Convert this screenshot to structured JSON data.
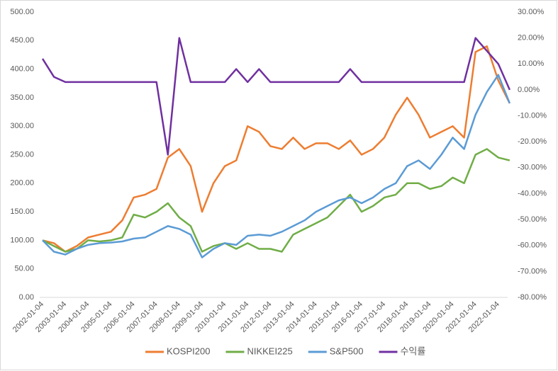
{
  "chart_data": {
    "type": "line",
    "categories": [
      "2002-01-04",
      null,
      "2003-01-04",
      null,
      "2004-01-04",
      null,
      "2005-01-04",
      null,
      "2006-01-04",
      null,
      "2007-01-04",
      null,
      "2008-01-04",
      null,
      "2009-01-04",
      null,
      "2010-01-04",
      null,
      "2011-01-04",
      null,
      "2012-01-04",
      null,
      "2013-01-04",
      null,
      "2014-01-04",
      null,
      "2015-01-04",
      null,
      "2016-01-04",
      null,
      "2017-01-04",
      null,
      "2018-01-04",
      null,
      "2019-01-04",
      null,
      "2020-01-04",
      null,
      "2021-01-04",
      null,
      "2022-01-04",
      null
    ],
    "series": [
      {
        "name": "KOSPI200",
        "color": "#ED7D31",
        "values": [
          100,
          95,
          80,
          90,
          105,
          110,
          115,
          135,
          175,
          180,
          190,
          245,
          260,
          230,
          150,
          200,
          230,
          240,
          300,
          290,
          265,
          260,
          280,
          260,
          270,
          270,
          260,
          275,
          250,
          260,
          280,
          320,
          350,
          320,
          280,
          290,
          300,
          280,
          430,
          440,
          380,
          340
        ]
      },
      {
        "name": "NIKKEI225",
        "color": "#70AD47",
        "values": [
          100,
          90,
          80,
          85,
          100,
          98,
          100,
          105,
          145,
          140,
          150,
          165,
          140,
          125,
          80,
          90,
          95,
          85,
          95,
          85,
          85,
          80,
          110,
          120,
          130,
          140,
          160,
          180,
          150,
          160,
          175,
          180,
          200,
          200,
          190,
          195,
          210,
          200,
          250,
          260,
          245,
          240
        ]
      },
      {
        "name": "S&P500",
        "color": "#5B9BD5",
        "values": [
          100,
          80,
          75,
          85,
          92,
          95,
          96,
          98,
          103,
          105,
          115,
          125,
          120,
          110,
          70,
          85,
          95,
          92,
          108,
          110,
          108,
          115,
          125,
          135,
          150,
          160,
          170,
          175,
          165,
          175,
          190,
          200,
          230,
          240,
          225,
          250,
          280,
          260,
          320,
          360,
          390,
          340
        ]
      },
      {
        "name": "수익률",
        "color": "#7030A0",
        "axis": "y2",
        "values": [
          12,
          5,
          3,
          3,
          3,
          3,
          3,
          3,
          3,
          3,
          3,
          -25,
          20,
          3,
          3,
          3,
          3,
          8,
          3,
          8,
          3,
          3,
          3,
          3,
          3,
          3,
          3,
          8,
          3,
          3,
          3,
          3,
          3,
          3,
          3,
          3,
          3,
          3,
          20,
          15,
          10,
          0
        ]
      }
    ],
    "ylim": [
      0,
      500
    ],
    "yticks": [
      {
        "value": 0,
        "label": "0.00"
      },
      {
        "value": 50,
        "label": "50.00"
      },
      {
        "value": 100,
        "label": "100.00"
      },
      {
        "value": 150,
        "label": "150.00"
      },
      {
        "value": 200,
        "label": "200.00"
      },
      {
        "value": 250,
        "label": "250.00"
      },
      {
        "value": 300,
        "label": "300.00"
      },
      {
        "value": 350,
        "label": "350.00"
      },
      {
        "value": 400,
        "label": "400.00"
      },
      {
        "value": 450,
        "label": "450.00"
      },
      {
        "value": 500,
        "label": "500.00"
      }
    ],
    "y2lim": [
      -80,
      30
    ],
    "y2ticks": [
      {
        "value": -80,
        "label": "-80.00%"
      },
      {
        "value": -70,
        "label": "-70.00%"
      },
      {
        "value": -60,
        "label": "-60.00%"
      },
      {
        "value": -50,
        "label": "-50.00%"
      },
      {
        "value": -40,
        "label": "-40.00%"
      },
      {
        "value": -30,
        "label": "-30.00%"
      },
      {
        "value": -20,
        "label": "-20.00%"
      },
      {
        "value": -10,
        "label": "-10.00%"
      },
      {
        "value": 0,
        "label": "0.00%"
      },
      {
        "value": 10,
        "label": "10.00%"
      },
      {
        "value": 20,
        "label": "20.00%"
      },
      {
        "value": 30,
        "label": "30.00%"
      }
    ],
    "legend": "bottom"
  }
}
